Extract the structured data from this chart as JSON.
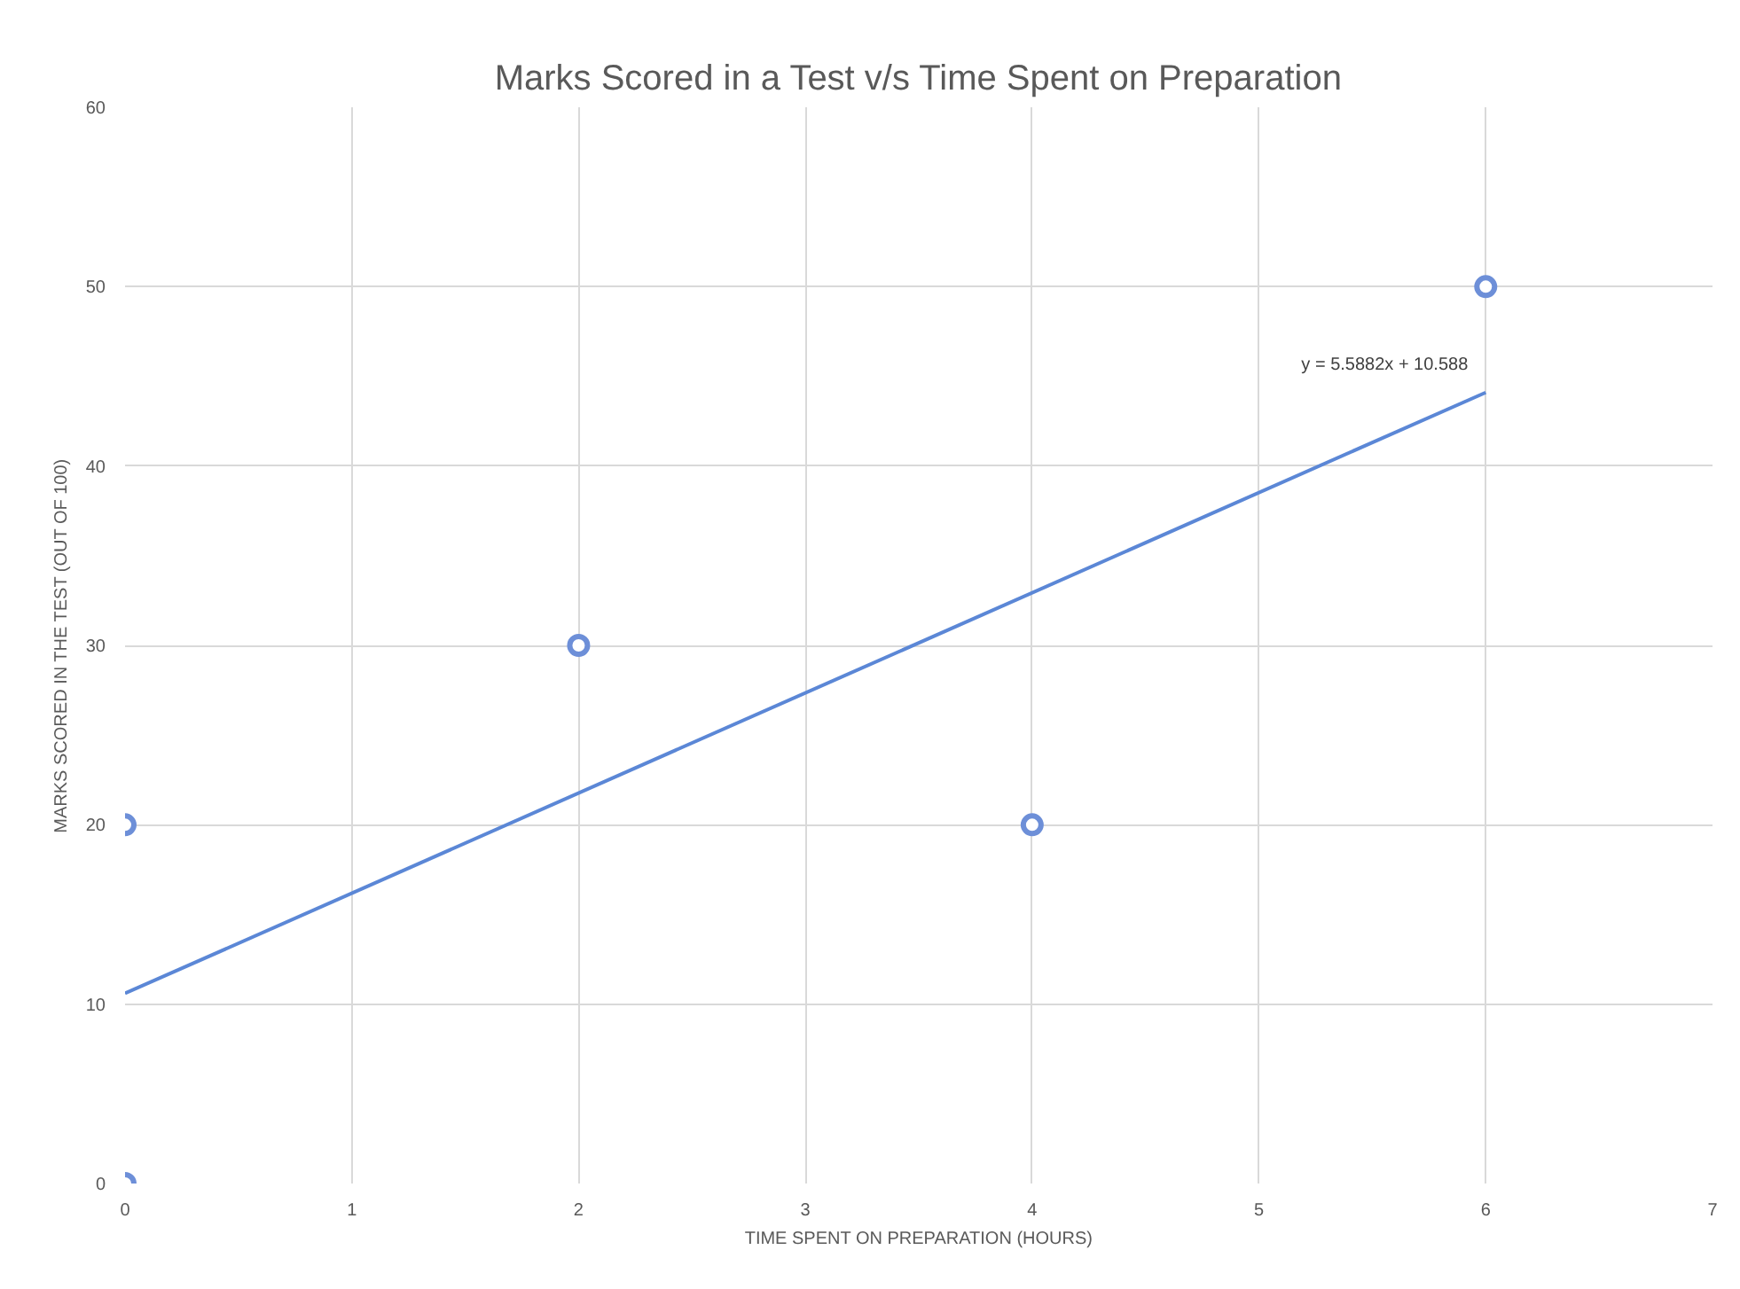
{
  "chart_data": {
    "type": "scatter",
    "title": "Marks Scored in a Test v/s Time Spent on Preparation",
    "xlabel": "TIME SPENT ON PREPARATION (HOURS)",
    "ylabel": "MARKS SCORED IN THE TEST (OUT OF 100)",
    "x": [
      0,
      0,
      2,
      4,
      6
    ],
    "series": [
      {
        "color": "#6d8fd8",
        "values": [
          0,
          20,
          30,
          20,
          50
        ],
        "marker": "circle"
      },
      {
        "type": "line",
        "color": "#5b87d6",
        "x": [
          0,
          6
        ],
        "values": [
          10.6,
          44.1
        ],
        "line_style": "solid"
      }
    ],
    "annotations": [
      {
        "text": "y = 5.5882x + 10.588",
        "x": 6,
        "y": 44.1
      }
    ],
    "xlim": [
      0,
      7
    ],
    "xticks": [
      0,
      1,
      2,
      3,
      4,
      5,
      6,
      7
    ],
    "ylim": [
      0,
      60
    ],
    "yticks": [
      0,
      10,
      20,
      30,
      40,
      50,
      60
    ],
    "grid": true
  }
}
